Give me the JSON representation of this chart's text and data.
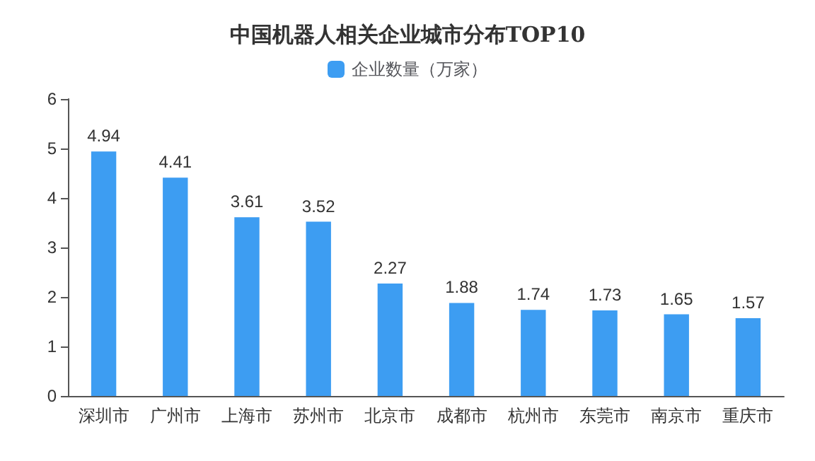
{
  "chart_data": {
    "type": "bar",
    "title": "中国机器人相关企业城市分布TOP10",
    "categories": [
      "深圳市",
      "广州市",
      "上海市",
      "苏州市",
      "北京市",
      "成都市",
      "杭州市",
      "东莞市",
      "南京市",
      "重庆市"
    ],
    "series": [
      {
        "name": "企业数量（万家）",
        "color": "#3d9df2",
        "values": [
          4.94,
          4.41,
          3.61,
          3.52,
          2.27,
          1.88,
          1.74,
          1.73,
          1.65,
          1.57
        ]
      }
    ],
    "ylim": [
      0,
      6
    ],
    "yticks": [
      0,
      1,
      2,
      3,
      4,
      5,
      6
    ],
    "grid": false,
    "legend": "top",
    "data_labels": true
  }
}
